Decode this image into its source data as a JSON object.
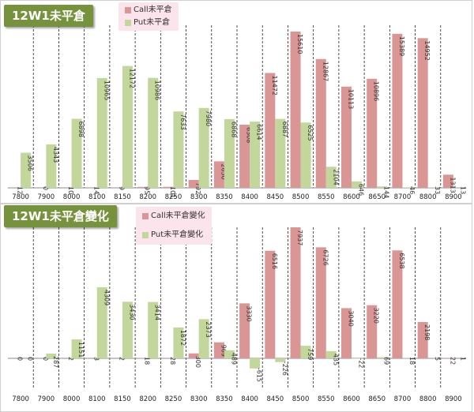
{
  "colors": {
    "call": "#d99694",
    "put": "#c3d69b",
    "title_bg": "#76923c",
    "legend_bg": "#fce4ec"
  },
  "chart_data": [
    {
      "type": "bar",
      "title": "12W1未平倉",
      "categories": [
        "7800",
        "7900",
        "8000",
        "8100",
        "8150",
        "8200",
        "8250",
        "8300",
        "8350",
        "8400",
        "8450",
        "8500",
        "8550",
        "8600",
        "8650",
        "8700",
        "8800",
        "8900"
      ],
      "series": [
        {
          "name": "Call未平倉",
          "values": [
            12,
            0,
            10,
            14,
            9,
            95,
            101,
            792,
            2650,
            6308,
            11472,
            15610,
            12867,
            10113,
            10896,
            15389,
            14952,
            1313
          ]
        },
        {
          "name": "Put未平倉",
          "values": [
            3506,
            4343,
            6898,
            10965,
            12172,
            10986,
            7633,
            7980,
            6868,
            6614,
            6887,
            6525,
            2104,
            646,
            144,
            46,
            33,
            13
          ]
        }
      ],
      "ylim": [
        0,
        17500
      ]
    },
    {
      "type": "bar",
      "title": "12W1未平倉變化",
      "categories": [
        "7800",
        "7900",
        "8000",
        "8100",
        "8150",
        "8200",
        "8250",
        "8300",
        "8350",
        "8400",
        "8450",
        "8500",
        "8550",
        "8600",
        "8650",
        "8700",
        "8800",
        "8900"
      ],
      "series": [
        {
          "name": "Call未平倉變化",
          "values": [
            0,
            0,
            2,
            3,
            2,
            18,
            28,
            300,
            969,
            3330,
            6516,
            7937,
            6726,
            3040,
            3220,
            6538,
            2198,
            22
          ]
        },
        {
          "name": "Put未平倉變化",
          "values": [
            0,
            287,
            1151,
            4309,
            3430,
            3414,
            1872,
            2373,
            489,
            -615,
            -226,
            759,
            435,
            -22,
            69,
            18,
            5,
            1
          ]
        }
      ],
      "ylim": [
        -1000,
        8500
      ]
    }
  ]
}
